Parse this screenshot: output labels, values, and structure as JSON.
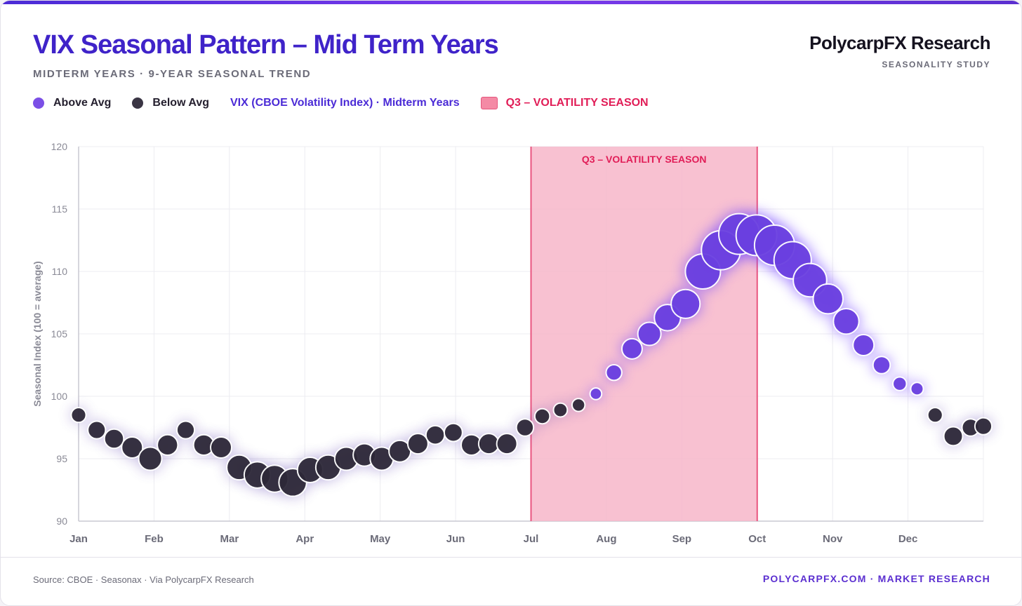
{
  "header": {
    "title": "VIX Seasonal Pattern – Mid Term Years",
    "subtitle": "MIDTERM YEARS · 9-YEAR SEASONAL TREND",
    "brand": "PolycarpFX Research",
    "brand_sub": "SEASONALITY STUDY"
  },
  "legend": {
    "above": "Above Avg",
    "below": "Below Avg",
    "series": "VIX (CBOE Volatility Index) · Midterm Years",
    "season": "Q3 – VOLATILITY SEASON"
  },
  "footer": {
    "source": "Source: CBOE · Seasonax · Via PolycarpFX Research",
    "site": "POLYCARPFX.COM · MARKET RESEARCH"
  },
  "colors": {
    "above": "#6a3fe0",
    "below": "#2d2838",
    "accent": "#3f23c9",
    "season_fill": "#f7b6c9",
    "season_text": "#e11d57"
  },
  "chart_data": {
    "type": "scatter",
    "title": "VIX Seasonal Pattern – Mid Term Years",
    "ylabel": "Seasonal Index (100 = average)",
    "xlabel": "",
    "ylim": [
      90,
      120
    ],
    "yticks": [
      90,
      95,
      100,
      105,
      110,
      115,
      120
    ],
    "xticks": [
      "Jan",
      "Feb",
      "Mar",
      "Apr",
      "May",
      "Jun",
      "Jul",
      "Aug",
      "Sep",
      "Oct",
      "Nov",
      "Dec"
    ],
    "grid": true,
    "bubble_size": "distance from average",
    "baseline": 100,
    "shaded_region": {
      "label": "Q3 – VOLATILITY SEASON",
      "start_month": 6,
      "end_month": 9
    },
    "series": [
      {
        "name": "VIX (CBOE Volatility Index) · Midterm Years",
        "x": [
          0.0,
          0.24,
          0.47,
          0.71,
          0.95,
          1.18,
          1.42,
          1.66,
          1.89,
          2.13,
          2.37,
          2.6,
          2.84,
          3.07,
          3.31,
          3.55,
          3.79,
          4.02,
          4.26,
          4.5,
          4.73,
          4.97,
          5.21,
          5.44,
          5.68,
          5.92,
          6.15,
          6.39,
          6.63,
          6.86,
          7.1,
          7.34,
          7.57,
          7.81,
          8.05,
          8.28,
          8.52,
          8.76,
          8.99,
          9.23,
          9.47,
          9.7,
          9.94,
          10.18,
          10.41,
          10.65,
          10.89,
          11.12,
          11.36,
          11.6,
          11.83,
          12.0
        ],
        "y": [
          98.5,
          97.3,
          96.6,
          95.9,
          95.0,
          96.1,
          97.3,
          96.1,
          95.9,
          94.3,
          93.7,
          93.4,
          93.1,
          94.1,
          94.3,
          95.0,
          95.3,
          95.0,
          95.6,
          96.2,
          96.9,
          97.1,
          96.1,
          96.2,
          96.2,
          97.5,
          98.4,
          98.9,
          99.3,
          100.2,
          101.9,
          103.8,
          105.0,
          106.3,
          107.4,
          110.0,
          111.7,
          113.0,
          112.9,
          112.1,
          110.9,
          109.3,
          107.8,
          106.0,
          104.1,
          102.5,
          101.0,
          100.6,
          98.5,
          96.8,
          97.5,
          97.6
        ]
      }
    ]
  }
}
